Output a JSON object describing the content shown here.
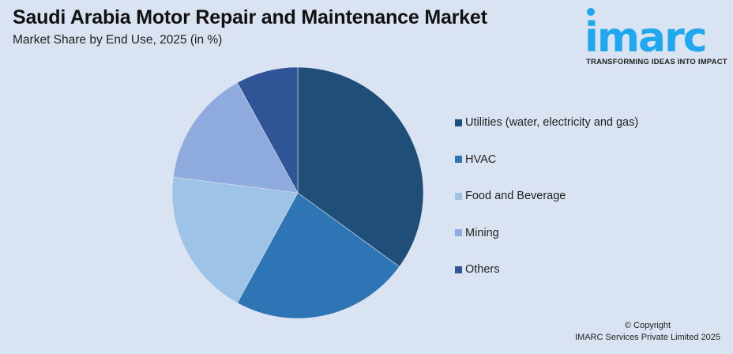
{
  "header": {
    "title": "Saudi Arabia Motor Repair and Maintenance Market",
    "subtitle": "Market Share by End Use, 2025 (in %)"
  },
  "logo": {
    "word": "imarc",
    "tagline": "TRANSFORMING IDEAS INTO IMPACT",
    "color": "#1fa8ef"
  },
  "footer": {
    "copyright": "© Copyright",
    "company": "IMARC Services Private Limited 2025"
  },
  "chart_data": {
    "type": "pie",
    "title": "Saudi Arabia Motor Repair and Maintenance Market",
    "subtitle": "Market Share by End Use, 2025 (in %)",
    "categories": [
      "Utilities (water, electricity and gas)",
      "HVAC",
      "Food and Beverage",
      "Mining",
      "Others"
    ],
    "values": [
      35,
      23,
      19,
      15,
      8
    ],
    "colors": [
      "#1f4e79",
      "#2e75b6",
      "#9dc3e6",
      "#8faadc",
      "#2f5597"
    ],
    "start_angle": "12 o'clock, clockwise",
    "legend_position": "right",
    "data_labels": false
  }
}
